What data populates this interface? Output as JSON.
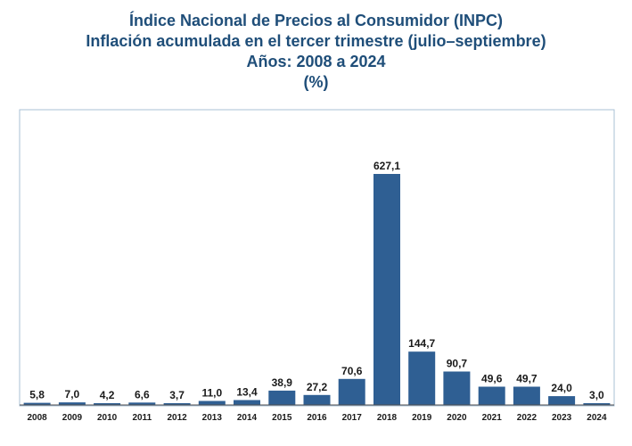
{
  "chart_data": {
    "type": "bar",
    "title": "Índice Nacional de Precios al Consumidor (INPC)",
    "subtitle_lines": [
      "Inflación acumulada en el tercer trimestre (julio–septiembre)",
      "Años: 2008 a 2024",
      "(%)"
    ],
    "categories": [
      "2008",
      "2009",
      "2010",
      "2011",
      "2012",
      "2013",
      "2014",
      "2015",
      "2016",
      "2017",
      "2018",
      "2019",
      "2020",
      "2021",
      "2022",
      "2023",
      "2024"
    ],
    "values": [
      5.8,
      7.0,
      4.2,
      6.6,
      3.7,
      11.0,
      13.4,
      38.9,
      27.2,
      70.6,
      627.1,
      144.7,
      90.7,
      49.6,
      49.7,
      24.0,
      3.0
    ],
    "data_labels": [
      "5,8",
      "7,0",
      "4,2",
      "6,6",
      "3,7",
      "11,0",
      "13,4",
      "38,9",
      "27,2",
      "70,6",
      "627,1",
      "144,7",
      "90,7",
      "49,6",
      "49,7",
      "24,0",
      "3,0"
    ],
    "ylim": [
      0,
      700
    ],
    "grid": false,
    "legend": "none",
    "bar_color": "#2f5f93",
    "frame_color": "#a9c0d6"
  }
}
